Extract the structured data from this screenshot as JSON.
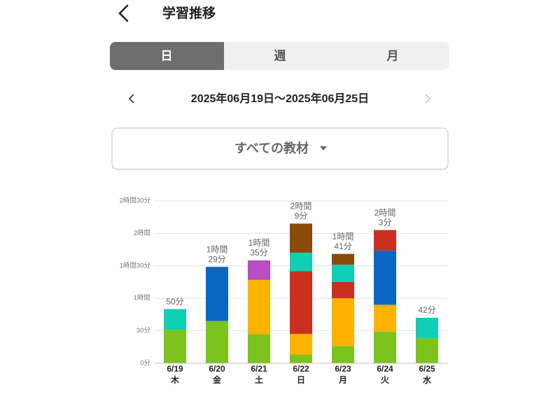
{
  "header": {
    "title": "学習推移"
  },
  "tabs": [
    "日",
    "週",
    "月"
  ],
  "date_range": "2025年06月19日〜2025年06月25日",
  "filter": "すべての教材",
  "chart_data": {
    "type": "stacked_bar",
    "categories": [
      "6/19",
      "6/20",
      "6/21",
      "6/22",
      "6/23",
      "6/24",
      "6/25"
    ],
    "weekdays": [
      "木",
      "金",
      "土",
      "日",
      "月",
      "火",
      "水"
    ],
    "series": [
      {
        "color": "#7dc31d",
        "values": [
          31,
          39,
          27,
          8,
          16,
          29,
          23
        ]
      },
      {
        "color": "#fdb200",
        "values": [
          null,
          null,
          50,
          19,
          44,
          25,
          null
        ]
      },
      {
        "color": "#0a66c2",
        "values": [
          null,
          50,
          null,
          null,
          null,
          50,
          null
        ]
      },
      {
        "color": "#c9301f",
        "values": [
          null,
          null,
          null,
          58,
          15,
          19,
          null
        ]
      },
      {
        "color": "#10cfb4",
        "values": [
          19,
          null,
          null,
          17,
          16,
          null,
          19
        ]
      },
      {
        "color": "#b84ec2",
        "values": [
          null,
          null,
          18,
          null,
          null,
          null,
          null
        ]
      },
      {
        "color": "#8a4a0a",
        "values": [
          null,
          null,
          null,
          27,
          10,
          null,
          null
        ]
      }
    ],
    "totals": [
      50,
      89,
      95,
      129,
      101,
      123,
      42
    ],
    "total_labels": [
      [
        "50分"
      ],
      [
        "1時間",
        "29分"
      ],
      [
        "1時間",
        "35分"
      ],
      [
        "2時間",
        "9分"
      ],
      [
        "1時間",
        "41分"
      ],
      [
        "2時間",
        "3分"
      ],
      [
        "42分"
      ]
    ],
    "ylim": [
      0,
      150
    ],
    "yticks": [
      {
        "value": 0,
        "label": "0分"
      },
      {
        "value": 30,
        "label": "30分"
      },
      {
        "value": 60,
        "label": "1時間"
      },
      {
        "value": 90,
        "label": "1時間30分"
      },
      {
        "value": 120,
        "label": "2時間"
      },
      {
        "value": 150,
        "label": "2時間30分"
      }
    ],
    "grid": true
  }
}
